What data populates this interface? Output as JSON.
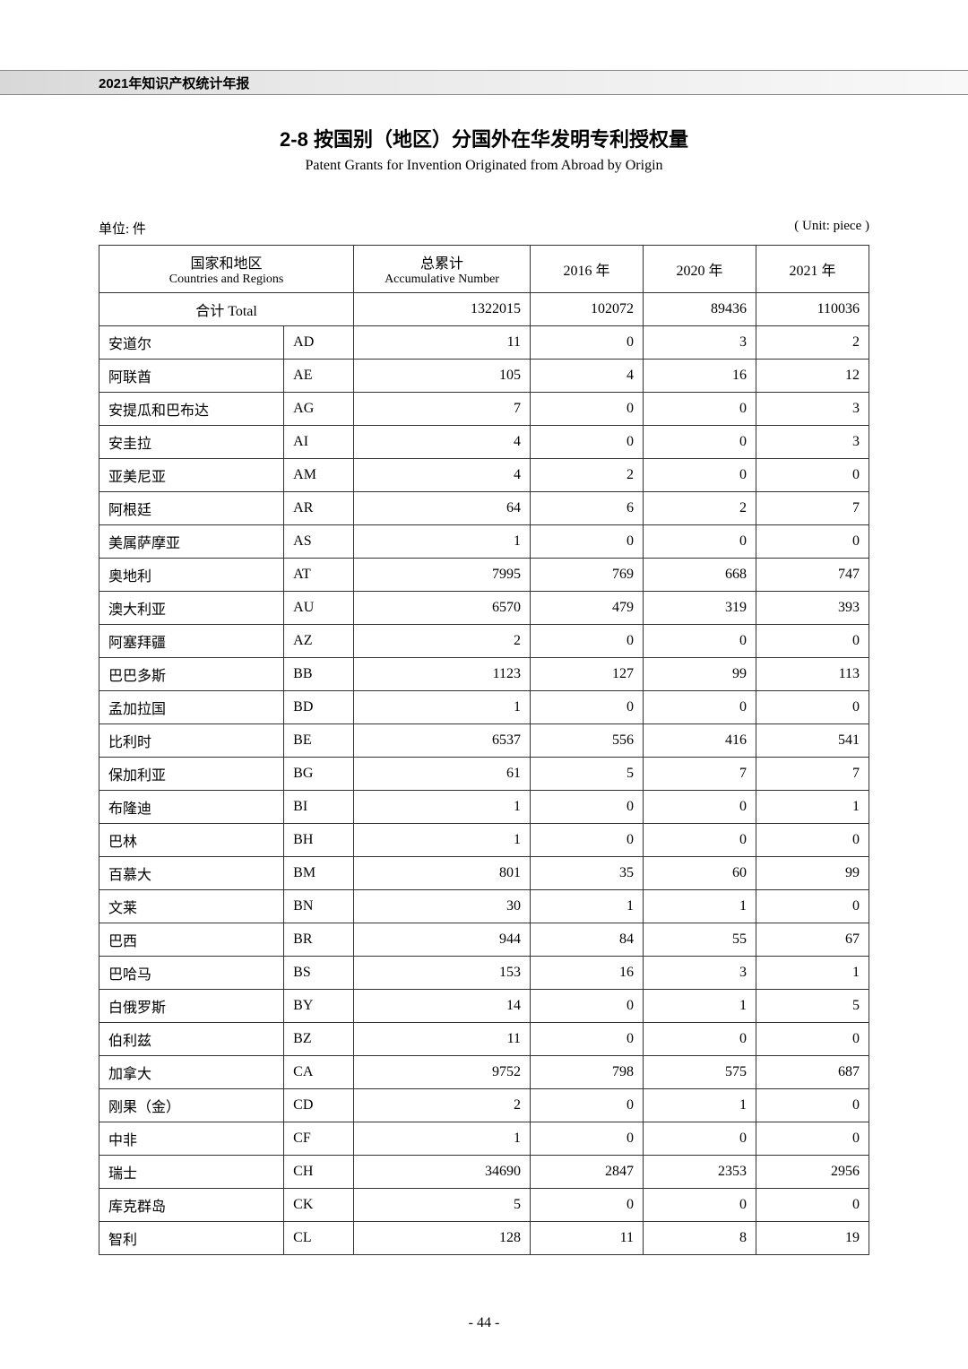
{
  "header": {
    "report_title": "2021年知识产权统计年报"
  },
  "title": {
    "cn": "2-8  按国别（地区）分国外在华发明专利授权量",
    "en": "Patent Grants for Invention Originated from Abroad by Origin"
  },
  "unit": {
    "left": "单位: 件",
    "right": "( Unit: piece )"
  },
  "table": {
    "headers": {
      "country_cn": "国家和地区",
      "country_en": "Countries and Regions",
      "acc_cn": "总累计",
      "acc_en": "Accumulative Number",
      "y2016": "2016 年",
      "y2020": "2020 年",
      "y2021": "2021 年"
    },
    "total": {
      "label": "合计 Total",
      "acc": "1322015",
      "y2016": "102072",
      "y2020": "89436",
      "y2021": "110036"
    },
    "rows": [
      {
        "name": "安道尔",
        "code": "AD",
        "acc": "11",
        "y2016": "0",
        "y2020": "3",
        "y2021": "2"
      },
      {
        "name": "阿联酋",
        "code": "AE",
        "acc": "105",
        "y2016": "4",
        "y2020": "16",
        "y2021": "12"
      },
      {
        "name": "安提瓜和巴布达",
        "code": "AG",
        "acc": "7",
        "y2016": "0",
        "y2020": "0",
        "y2021": "3"
      },
      {
        "name": "安圭拉",
        "code": "AI",
        "acc": "4",
        "y2016": "0",
        "y2020": "0",
        "y2021": "3"
      },
      {
        "name": "亚美尼亚",
        "code": "AM",
        "acc": "4",
        "y2016": "2",
        "y2020": "0",
        "y2021": "0"
      },
      {
        "name": "阿根廷",
        "code": "AR",
        "acc": "64",
        "y2016": "6",
        "y2020": "2",
        "y2021": "7"
      },
      {
        "name": "美属萨摩亚",
        "code": "AS",
        "acc": "1",
        "y2016": "0",
        "y2020": "0",
        "y2021": "0"
      },
      {
        "name": "奥地利",
        "code": "AT",
        "acc": "7995",
        "y2016": "769",
        "y2020": "668",
        "y2021": "747"
      },
      {
        "name": "澳大利亚",
        "code": "AU",
        "acc": "6570",
        "y2016": "479",
        "y2020": "319",
        "y2021": "393"
      },
      {
        "name": "阿塞拜疆",
        "code": "AZ",
        "acc": "2",
        "y2016": "0",
        "y2020": "0",
        "y2021": "0"
      },
      {
        "name": "巴巴多斯",
        "code": "BB",
        "acc": "1123",
        "y2016": "127",
        "y2020": "99",
        "y2021": "113"
      },
      {
        "name": "孟加拉国",
        "code": "BD",
        "acc": "1",
        "y2016": "0",
        "y2020": "0",
        "y2021": "0"
      },
      {
        "name": "比利时",
        "code": "BE",
        "acc": "6537",
        "y2016": "556",
        "y2020": "416",
        "y2021": "541"
      },
      {
        "name": "保加利亚",
        "code": "BG",
        "acc": "61",
        "y2016": "5",
        "y2020": "7",
        "y2021": "7"
      },
      {
        "name": "布隆迪",
        "code": "BI",
        "acc": "1",
        "y2016": "0",
        "y2020": "0",
        "y2021": "1"
      },
      {
        "name": "巴林",
        "code": "BH",
        "acc": "1",
        "y2016": "0",
        "y2020": "0",
        "y2021": "0"
      },
      {
        "name": "百慕大",
        "code": "BM",
        "acc": "801",
        "y2016": "35",
        "y2020": "60",
        "y2021": "99"
      },
      {
        "name": "文莱",
        "code": "BN",
        "acc": "30",
        "y2016": "1",
        "y2020": "1",
        "y2021": "0"
      },
      {
        "name": "巴西",
        "code": "BR",
        "acc": "944",
        "y2016": "84",
        "y2020": "55",
        "y2021": "67"
      },
      {
        "name": "巴哈马",
        "code": "BS",
        "acc": "153",
        "y2016": "16",
        "y2020": "3",
        "y2021": "1"
      },
      {
        "name": "白俄罗斯",
        "code": "BY",
        "acc": "14",
        "y2016": "0",
        "y2020": "1",
        "y2021": "5"
      },
      {
        "name": "伯利兹",
        "code": "BZ",
        "acc": "11",
        "y2016": "0",
        "y2020": "0",
        "y2021": "0"
      },
      {
        "name": "加拿大",
        "code": "CA",
        "acc": "9752",
        "y2016": "798",
        "y2020": "575",
        "y2021": "687"
      },
      {
        "name": "刚果（金）",
        "code": "CD",
        "acc": "2",
        "y2016": "0",
        "y2020": "1",
        "y2021": "0"
      },
      {
        "name": "中非",
        "code": "CF",
        "acc": "1",
        "y2016": "0",
        "y2020": "0",
        "y2021": "0"
      },
      {
        "name": "瑞士",
        "code": "CH",
        "acc": "34690",
        "y2016": "2847",
        "y2020": "2353",
        "y2021": "2956"
      },
      {
        "name": "库克群岛",
        "code": "CK",
        "acc": "5",
        "y2016": "0",
        "y2020": "0",
        "y2021": "0"
      },
      {
        "name": "智利",
        "code": "CL",
        "acc": "128",
        "y2016": "11",
        "y2020": "8",
        "y2021": "19"
      }
    ]
  },
  "page_number": "- 44 -"
}
